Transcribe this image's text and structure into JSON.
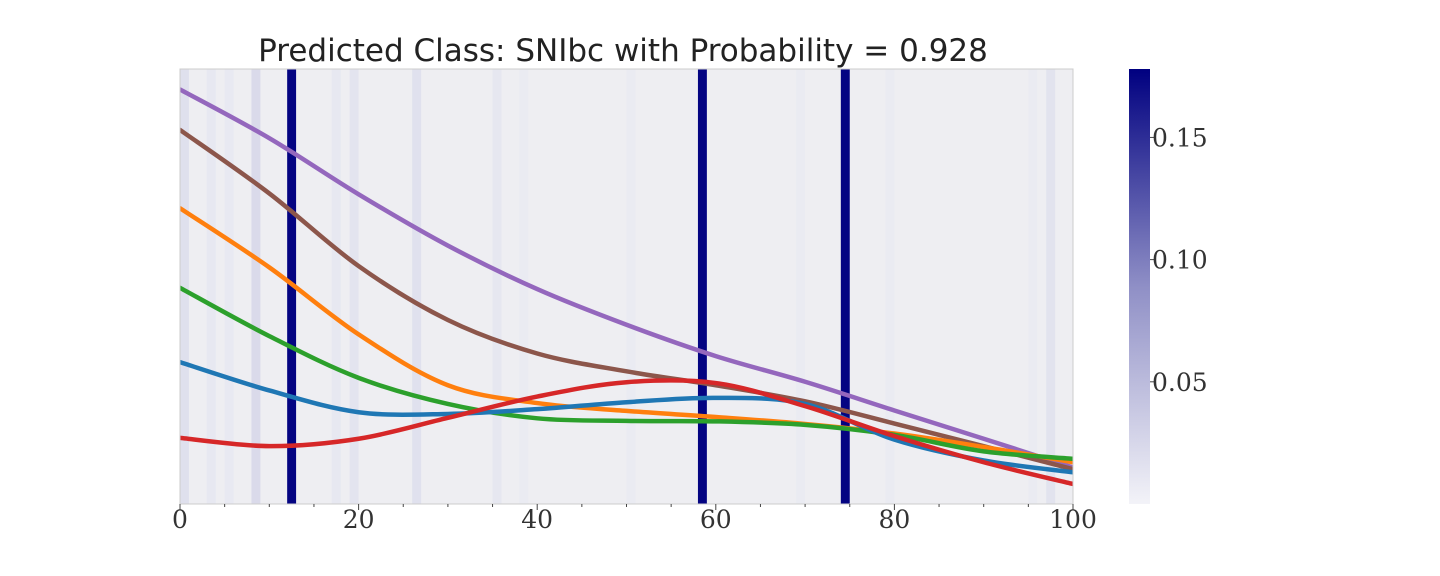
{
  "chart_data": {
    "type": "line",
    "title": "Predicted Class: SNIbc with Probability = 0.928",
    "xlabel": "",
    "ylabel": "",
    "xlim": [
      0,
      100
    ],
    "x_ticks": [
      0,
      20,
      40,
      60,
      80,
      100
    ],
    "x_minor_ticks": [
      5,
      10,
      15,
      25,
      30,
      35,
      45,
      50,
      55,
      65,
      70,
      75,
      85,
      90,
      95
    ],
    "ylim": [
      0,
      1
    ],
    "grid": false,
    "legend": "none",
    "series": [
      {
        "color": "#9467bd",
        "x": [
          0,
          10,
          20,
          30,
          40,
          50,
          60,
          70,
          80,
          90,
          100
        ],
        "values": [
          0.953,
          0.841,
          0.712,
          0.594,
          0.494,
          0.412,
          0.34,
          0.281,
          0.215,
          0.15,
          0.084
        ]
      },
      {
        "color": "#8c564b",
        "x": [
          0,
          10,
          20,
          30,
          40,
          50,
          60,
          70,
          80,
          90,
          100
        ],
        "values": [
          0.86,
          0.714,
          0.547,
          0.423,
          0.346,
          0.305,
          0.273,
          0.236,
          0.185,
          0.133,
          0.08
        ]
      },
      {
        "color": "#ff7f0e",
        "x": [
          0,
          10,
          20,
          30,
          40,
          50,
          60,
          70,
          80,
          90,
          100
        ],
        "values": [
          0.68,
          0.544,
          0.39,
          0.273,
          0.232,
          0.214,
          0.2,
          0.184,
          0.162,
          0.131,
          0.096
        ]
      },
      {
        "color": "#2ca02c",
        "x": [
          0,
          10,
          20,
          30,
          40,
          50,
          60,
          70,
          80,
          90,
          100
        ],
        "values": [
          0.497,
          0.386,
          0.29,
          0.23,
          0.197,
          0.191,
          0.19,
          0.182,
          0.159,
          0.121,
          0.104
        ]
      },
      {
        "color": "#1f77b4",
        "x": [
          0,
          10,
          20,
          30,
          40,
          50,
          60,
          70,
          80,
          90,
          100
        ],
        "values": [
          0.326,
          0.261,
          0.211,
          0.207,
          0.218,
          0.234,
          0.244,
          0.23,
          0.148,
          0.1,
          0.073
        ]
      },
      {
        "color": "#d62728",
        "x": [
          0,
          10,
          20,
          30,
          40,
          50,
          60,
          70,
          80,
          90,
          100
        ],
        "values": [
          0.152,
          0.133,
          0.15,
          0.198,
          0.247,
          0.28,
          0.278,
          0.225,
          0.156,
          0.096,
          0.046
        ]
      }
    ],
    "attention_bands": [
      {
        "x": 12.5,
        "weight": 0.175
      },
      {
        "x": 58.5,
        "weight": 0.175
      },
      {
        "x": 74.5,
        "weight": 0.175
      },
      {
        "x": 0.5,
        "weight": 0.012
      },
      {
        "x": 3.5,
        "weight": 0.006
      },
      {
        "x": 5.5,
        "weight": 0.005
      },
      {
        "x": 8.5,
        "weight": 0.016
      },
      {
        "x": 17.5,
        "weight": 0.006
      },
      {
        "x": 19.5,
        "weight": 0.009
      },
      {
        "x": 26.5,
        "weight": 0.011
      },
      {
        "x": 35.5,
        "weight": 0.007
      },
      {
        "x": 38.5,
        "weight": 0.004
      },
      {
        "x": 50.5,
        "weight": 0.004
      },
      {
        "x": 69.5,
        "weight": 0.004
      },
      {
        "x": 79.5,
        "weight": 0.004
      },
      {
        "x": 95.5,
        "weight": 0.004
      },
      {
        "x": 97.5,
        "weight": 0.01
      }
    ],
    "colorbar": {
      "range": [
        0,
        0.178
      ],
      "ticks": [
        "0.05",
        "0.10",
        "0.15"
      ],
      "tick_values": [
        0.05,
        0.1,
        0.15
      ],
      "colors": [
        "#eff0f5",
        "#000080"
      ]
    }
  }
}
